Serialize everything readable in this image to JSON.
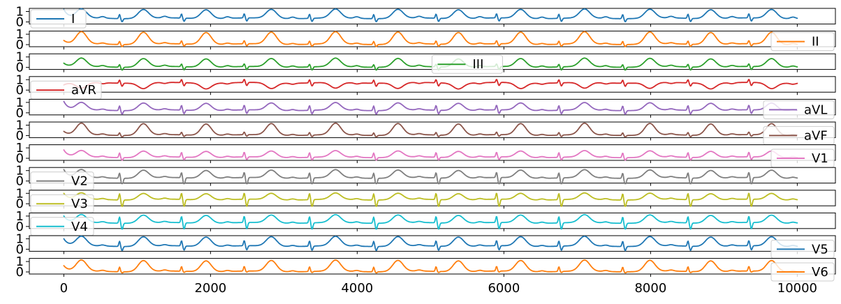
{
  "chart_data": {
    "type": "line",
    "x_ticks": [
      0,
      2000,
      4000,
      6000,
      8000,
      10000
    ],
    "x_tick_labels": [
      "0",
      "2000",
      "4000",
      "6000",
      "8000",
      "10000"
    ],
    "xlim": [
      -470,
      10520
    ],
    "x_max": 10000,
    "y_ticks": [
      0,
      1
    ],
    "y_tick_labels": [
      "0",
      "1"
    ],
    "ylim": [
      -0.2,
      1.3
    ],
    "beats_x": [
      240,
      1085,
      1940,
      2830,
      3705,
      4555,
      5380,
      6230,
      7100,
      7990,
      8820,
      9650
    ],
    "series": [
      {
        "name": "I",
        "color": "#1f77b4",
        "legend_pos": "upper-left",
        "baseline": 0.35,
        "p": 0.15,
        "r": 0.4,
        "s": -0.3,
        "t": 0.85,
        "start": 1.2
      },
      {
        "name": "II",
        "color": "#ff7f0e",
        "legend_pos": "upper-right",
        "baseline": 0.05,
        "p": 0.1,
        "r": 0.3,
        "s": -0.2,
        "t": 1.15,
        "start": 0.4
      },
      {
        "name": "III",
        "color": "#2ca02c",
        "legend_pos": "upper-center",
        "baseline": 0.05,
        "p": 0.12,
        "r": 0.25,
        "s": -0.3,
        "t": 0.8,
        "start": 0.4
      },
      {
        "name": "aVR",
        "color": "#d62728",
        "legend_pos": "lower-left",
        "baseline": 0.7,
        "p": -0.1,
        "r": 0.3,
        "s": -0.3,
        "t": -0.55,
        "start": 0.5
      },
      {
        "name": "aVL",
        "color": "#9467bd",
        "legend_pos": "upper-right",
        "baseline": 0.25,
        "p": 0.1,
        "r": 0.45,
        "s": -0.35,
        "t": 0.7,
        "start": 1.1
      },
      {
        "name": "aVF",
        "color": "#8c564b",
        "legend_pos": "lower-right",
        "baseline": 0.05,
        "p": 0.1,
        "r": 0.25,
        "s": -0.15,
        "t": 1.1,
        "start": 0.4
      },
      {
        "name": "V1",
        "color": "#e377c2",
        "legend_pos": "lower-right",
        "baseline": 0.1,
        "p": 0.1,
        "r": 0.45,
        "s": -0.25,
        "t": 0.6,
        "start": 0.8
      },
      {
        "name": "V2",
        "color": "#7f7f7f",
        "legend_pos": "lower-left",
        "baseline": 0.3,
        "p": 0.1,
        "r": 0.5,
        "s": -0.8,
        "t": 0.75,
        "start": 1.1
      },
      {
        "name": "V3",
        "color": "#bcbd22",
        "legend_pos": "lower-left",
        "baseline": 0.4,
        "p": 0.1,
        "r": 0.6,
        "s": -0.7,
        "t": 0.6,
        "start": 1.0
      },
      {
        "name": "V4",
        "color": "#17becf",
        "legend_pos": "lower-left",
        "baseline": 0.35,
        "p": 0.1,
        "r": 0.6,
        "s": -0.6,
        "t": 0.75,
        "start": 1.0
      },
      {
        "name": "V5",
        "color": "#1f77b4",
        "legend_pos": "lower-right",
        "baseline": 0.3,
        "p": 0.1,
        "r": 0.5,
        "s": -0.4,
        "t": 0.9,
        "start": 1.0
      },
      {
        "name": "V6",
        "color": "#ff7f0e",
        "legend_pos": "lower-right",
        "baseline": 0.05,
        "p": 0.1,
        "r": 0.45,
        "s": -0.1,
        "t": 1.05,
        "start": 0.6
      }
    ]
  }
}
